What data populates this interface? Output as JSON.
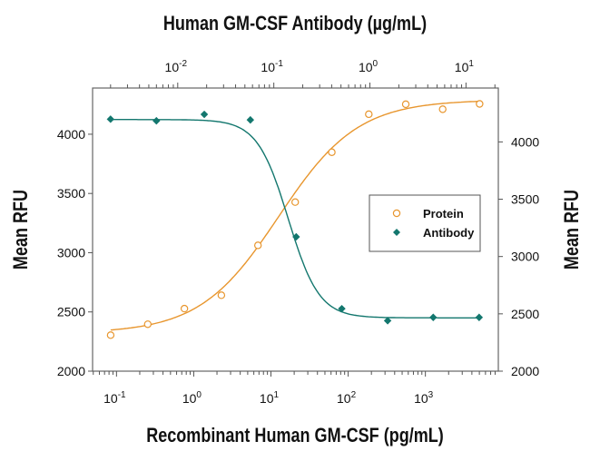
{
  "chart_data": {
    "type": "scatter",
    "top_title": "Human GM-CSF Antibody (µg/mL)",
    "bottom_title": "Recombinant Human GM-CSF (pg/mL)",
    "left_ylabel": "Mean RFU",
    "right_ylabel": "Mean RFU",
    "bottom_xaxis": {
      "scale": "log",
      "range": [
        0.049,
        8800
      ],
      "ticks": [
        0.1,
        1,
        10,
        100,
        1000
      ],
      "tick_exponents": [
        "-1",
        "0",
        "1",
        "2",
        "3"
      ]
    },
    "top_xaxis": {
      "scale": "log",
      "range": [
        0.0013,
        21.7
      ],
      "ticks": [
        0.01,
        0.1,
        1,
        10
      ],
      "tick_exponents": [
        "-2",
        "-1",
        "0",
        "1"
      ]
    },
    "left_yaxis": {
      "range": [
        2000,
        4390
      ],
      "ticks": [
        "2000",
        "2500",
        "3000",
        "3500",
        "4000"
      ]
    },
    "right_yaxis": {
      "range": [
        2000,
        4470
      ],
      "ticks": [
        "2000",
        "2500",
        "3000",
        "3500",
        "4000"
      ]
    },
    "tick_base": "10",
    "legend": {
      "placement": "center-right",
      "entries": [
        "Protein",
        "Antibody"
      ]
    },
    "series": [
      {
        "name": "Protein",
        "axes": "bottom-left",
        "marker": "open-circle",
        "color": "#e8962e",
        "x": [
          0.084,
          0.254,
          0.757,
          2.28,
          6.79,
          20.6,
          61.4,
          185,
          557,
          1675,
          5035
        ],
        "y": [
          2304,
          2396,
          2528,
          2641,
          3062,
          3427,
          3848,
          4169,
          4253,
          4211,
          4256
        ],
        "fit": {
          "bottom": 2320,
          "top": 4290,
          "logEC50": 1.1,
          "hill": 0.85
        }
      },
      {
        "name": "Antibody",
        "axes": "top-right",
        "marker": "filled-diamond",
        "color": "#13776e",
        "x": [
          0.002,
          0.006,
          0.0189,
          0.057,
          0.171,
          0.51,
          1.53,
          4.56,
          13.7
        ],
        "y": [
          4198,
          4184,
          4240,
          4192,
          3172,
          2545,
          2440,
          2469,
          2469
        ],
        "fit": {
          "bottom": 2465,
          "top": 4195,
          "logEC50": -0.85,
          "hill": -2.7
        }
      }
    ]
  }
}
